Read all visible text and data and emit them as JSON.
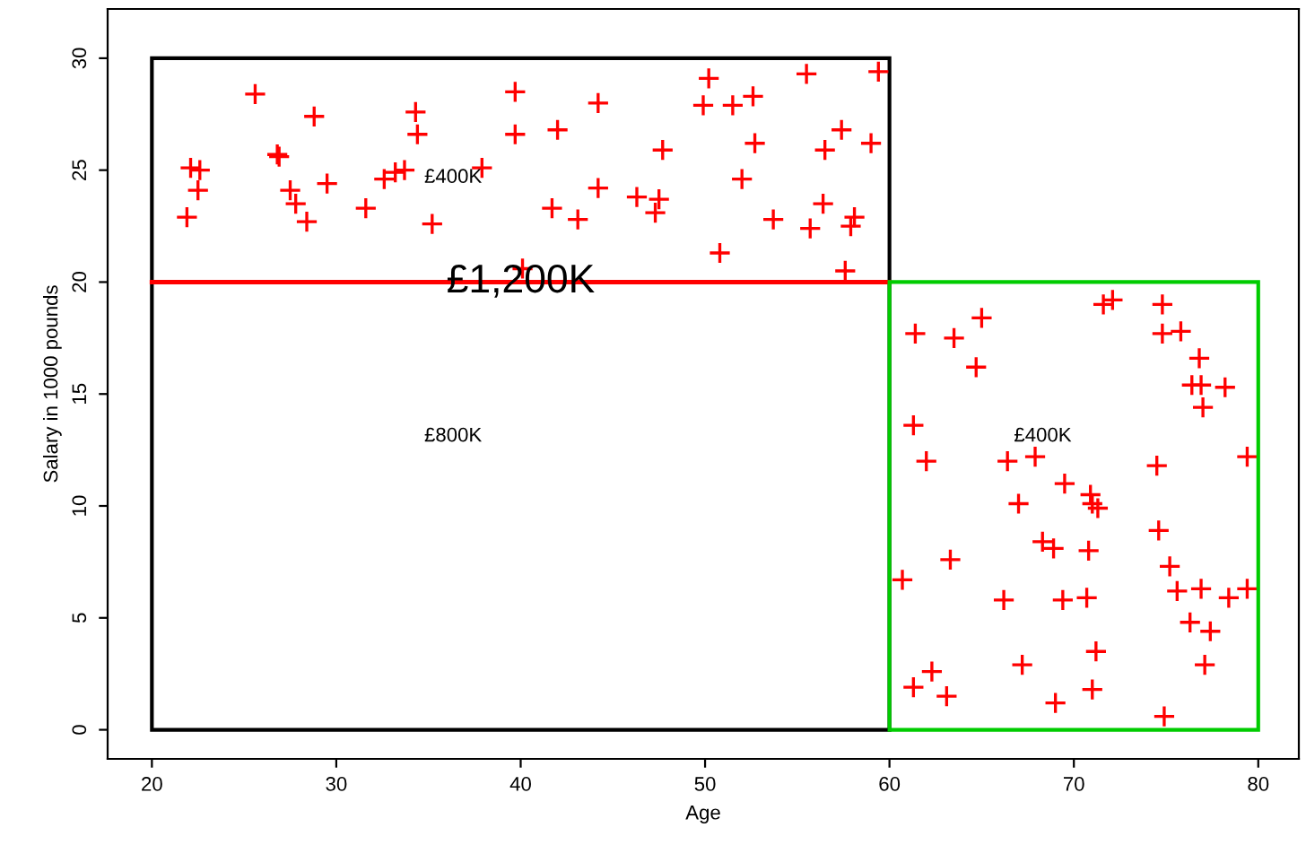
{
  "chart_data": {
    "type": "scatter",
    "xlabel": "Age",
    "ylabel": "Salary in 1000 pounds",
    "xlim": [
      17.6,
      82.2
    ],
    "ylim": [
      -1.3,
      32.2
    ],
    "xticks": [
      20,
      30,
      40,
      50,
      60,
      70,
      80
    ],
    "yticks": [
      0,
      5,
      10,
      15,
      20,
      25,
      30
    ],
    "marker": "cross",
    "grid": false,
    "legend": false,
    "series": [
      {
        "color": "#ff0000",
        "x": [
          25.6,
          28.8,
          34.3,
          34.4,
          39.7,
          39.7,
          22.1,
          22.6,
          26.8,
          26.9,
          22.5,
          21.9,
          27.5,
          27.8,
          28.4,
          29.5,
          31.6,
          32.6,
          33.2,
          33.7,
          35.2,
          37.9,
          40.1,
          50.2,
          55.5,
          59.4,
          44.2,
          49.9,
          51.5,
          52.6,
          42.0,
          47.7,
          52.7,
          57.4,
          56.5,
          59.0,
          44.2,
          52.0,
          41.7,
          43.1,
          46.3,
          47.5,
          47.3,
          56.4,
          53.7,
          55.7,
          58.1,
          57.9,
          50.8,
          57.6,
          71.6,
          72.1,
          74.8,
          65.0,
          61.4,
          63.5,
          74.8,
          75.8,
          76.8,
          64.7,
          76.4,
          76.9,
          78.2,
          77.0,
          61.3,
          62.0,
          66.4,
          67.9,
          74.5,
          79.4,
          69.5,
          70.9,
          71.0,
          71.3,
          67.0,
          74.6,
          68.3,
          68.9,
          70.8,
          63.3,
          75.2,
          60.7,
          76.9,
          79.4,
          78.4,
          75.6,
          66.2,
          69.4,
          70.7,
          76.3,
          77.4,
          71.2,
          67.2,
          77.1,
          62.3,
          61.3,
          63.1,
          71.0,
          69.0,
          74.9
        ],
        "values": [
          28.4,
          27.4,
          27.6,
          26.6,
          28.5,
          26.6,
          25.1,
          25.0,
          25.7,
          25.6,
          24.1,
          22.9,
          24.1,
          23.5,
          22.7,
          24.4,
          23.3,
          24.6,
          24.9,
          25.0,
          22.6,
          25.1,
          20.6,
          29.1,
          29.3,
          29.4,
          28.0,
          27.9,
          27.9,
          28.3,
          26.8,
          25.9,
          26.2,
          26.8,
          25.9,
          26.2,
          24.2,
          24.6,
          23.3,
          22.8,
          23.8,
          23.7,
          23.1,
          23.5,
          22.8,
          22.4,
          22.9,
          22.5,
          21.3,
          20.5,
          19.0,
          19.2,
          19.0,
          18.4,
          17.7,
          17.5,
          17.7,
          17.8,
          16.6,
          16.2,
          15.4,
          15.4,
          15.3,
          14.4,
          13.6,
          12.0,
          12.0,
          12.2,
          11.8,
          12.2,
          11.0,
          10.5,
          10.1,
          9.9,
          10.1,
          8.9,
          8.4,
          8.1,
          8.0,
          7.6,
          7.3,
          6.7,
          6.3,
          6.3,
          5.9,
          6.2,
          5.8,
          5.8,
          5.9,
          4.8,
          4.4,
          3.5,
          2.9,
          2.9,
          2.6,
          1.9,
          1.5,
          1.8,
          1.2,
          0.6
        ]
      }
    ],
    "ref_lines": [
      {
        "axis": "y",
        "value": 20,
        "label": "£1,200K",
        "color": "#ff0000"
      }
    ],
    "annotations": [
      "£400K",
      "£800K",
      "£400K"
    ]
  }
}
